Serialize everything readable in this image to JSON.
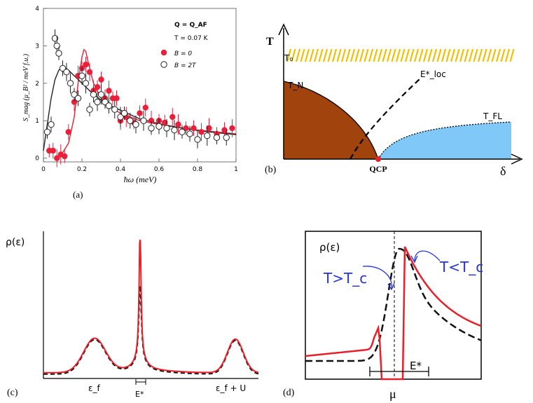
{
  "figure": {
    "panel_labels": {
      "a": "(a)",
      "b": "(b)",
      "c": "(c)",
      "d": "(d)"
    }
  },
  "chart_data": [
    {
      "panel": "a",
      "type": "scatter",
      "ylabel": "S_mag (μ_B² / meV f.u.)",
      "xlabel": "ħω (meV)",
      "xlim": [
        0,
        1
      ],
      "ylim": [
        -0.1,
        4
      ],
      "x_ticks": [
        "0",
        "0.2",
        "0.4",
        "0.6",
        "0.8",
        "1"
      ],
      "y_ticks": [
        "0",
        "1",
        "2",
        "3",
        "4"
      ],
      "annotations": [
        "Q = Q_AF",
        "T = 0.07 K"
      ],
      "series": [
        {
          "name": "B = 0",
          "color": "#e8203a",
          "marker": "filled-circle",
          "x": [
            0.03,
            0.05,
            0.07,
            0.09,
            0.11,
            0.13,
            0.16,
            0.18,
            0.2,
            0.22,
            0.24,
            0.26,
            0.28,
            0.3,
            0.32,
            0.34,
            0.36,
            0.38,
            0.4,
            0.43,
            0.47,
            0.5,
            0.53,
            0.56,
            0.6,
            0.63,
            0.67,
            0.7,
            0.74,
            0.78,
            0.82,
            0.86,
            0.9,
            0.94,
            0.98
          ],
          "y": [
            0.2,
            0.2,
            0.0,
            0.1,
            0.05,
            0.7,
            1.5,
            2.2,
            2.4,
            2.5,
            2.3,
            1.8,
            1.9,
            2.1,
            1.6,
            1.8,
            1.6,
            1.6,
            1.0,
            1.1,
            0.95,
            1.2,
            1.35,
            1.0,
            1.0,
            0.95,
            1.1,
            0.9,
            0.8,
            0.8,
            0.7,
            0.8,
            0.65,
            0.75,
            0.8
          ]
        },
        {
          "name": "B = 2T",
          "color": "#222222",
          "marker": "open-circle",
          "x": [
            0.02,
            0.04,
            0.06,
            0.07,
            0.08,
            0.1,
            0.12,
            0.14,
            0.16,
            0.18,
            0.2,
            0.22,
            0.24,
            0.26,
            0.28,
            0.3,
            0.32,
            0.34,
            0.37,
            0.4,
            0.42,
            0.45,
            0.48,
            0.52,
            0.56,
            0.6,
            0.64,
            0.68,
            0.72,
            0.76,
            0.8,
            0.85,
            0.9,
            0.95
          ],
          "y": [
            0.7,
            0.9,
            3.2,
            3.0,
            2.8,
            2.4,
            2.3,
            2.0,
            1.7,
            1.6,
            2.2,
            2.0,
            1.3,
            1.7,
            1.5,
            1.7,
            1.5,
            1.4,
            1.3,
            1.1,
            1.2,
            1.0,
            0.9,
            1.0,
            0.8,
            0.85,
            0.8,
            0.75,
            0.7,
            0.65,
            0.5,
            0.6,
            0.55,
            0.55
          ]
        }
      ],
      "fit_curves": [
        {
          "name": "B = 0 fit",
          "color": "#e8203a",
          "x": [
            0.1,
            0.13,
            0.16,
            0.18,
            0.2,
            0.21,
            0.22,
            0.24,
            0.26,
            0.3,
            0.35,
            0.4,
            0.5,
            0.6,
            0.7,
            0.8,
            0.9,
            1.0
          ],
          "y": [
            0.15,
            0.4,
            1.1,
            2.0,
            2.7,
            2.9,
            2.85,
            2.4,
            2.0,
            1.6,
            1.35,
            1.2,
            1.0,
            0.9,
            0.82,
            0.75,
            0.7,
            0.65
          ]
        },
        {
          "name": "B = 2T fit",
          "color": "#222222",
          "x": [
            0.0,
            0.02,
            0.04,
            0.06,
            0.08,
            0.1,
            0.13,
            0.16,
            0.2,
            0.25,
            0.3,
            0.35,
            0.4,
            0.5,
            0.6,
            0.7,
            0.8,
            0.9,
            1.0
          ],
          "y": [
            0.2,
            0.9,
            1.6,
            2.1,
            2.35,
            2.45,
            2.35,
            2.2,
            2.0,
            1.75,
            1.55,
            1.4,
            1.28,
            1.05,
            0.92,
            0.82,
            0.74,
            0.68,
            0.63
          ]
        }
      ]
    },
    {
      "panel": "b",
      "type": "diagram",
      "xlabel": "δ",
      "ylabel": "T",
      "labels": {
        "t0": "T₀",
        "tn": "T_N",
        "eloc": "E*_loc",
        "tfl": "T_FL",
        "qcp": "QCP"
      },
      "colors": {
        "afm_phase": "#a0430d",
        "fl_phase": "#7fc8f8",
        "band": "#f0c000"
      }
    },
    {
      "panel": "c",
      "type": "line",
      "ylabel": "ρ(ε)",
      "x_ticks": [
        "ε_f",
        "E*",
        "ε_f + U"
      ],
      "series": [
        {
          "name": "red",
          "color": "#e8202a",
          "style": "solid"
        },
        {
          "name": "black",
          "color": "#111111",
          "style": "dashed"
        }
      ]
    },
    {
      "panel": "d",
      "type": "line",
      "ylabel": "ρ(ε)",
      "x_ticks": [
        "μ"
      ],
      "annotations": [
        "T>T_c",
        "T<T_c",
        "E*"
      ],
      "series": [
        {
          "name": "T<T_c",
          "color": "#e8202a",
          "style": "solid"
        },
        {
          "name": "T>T_c",
          "color": "#111111",
          "style": "dashed"
        }
      ]
    }
  ]
}
